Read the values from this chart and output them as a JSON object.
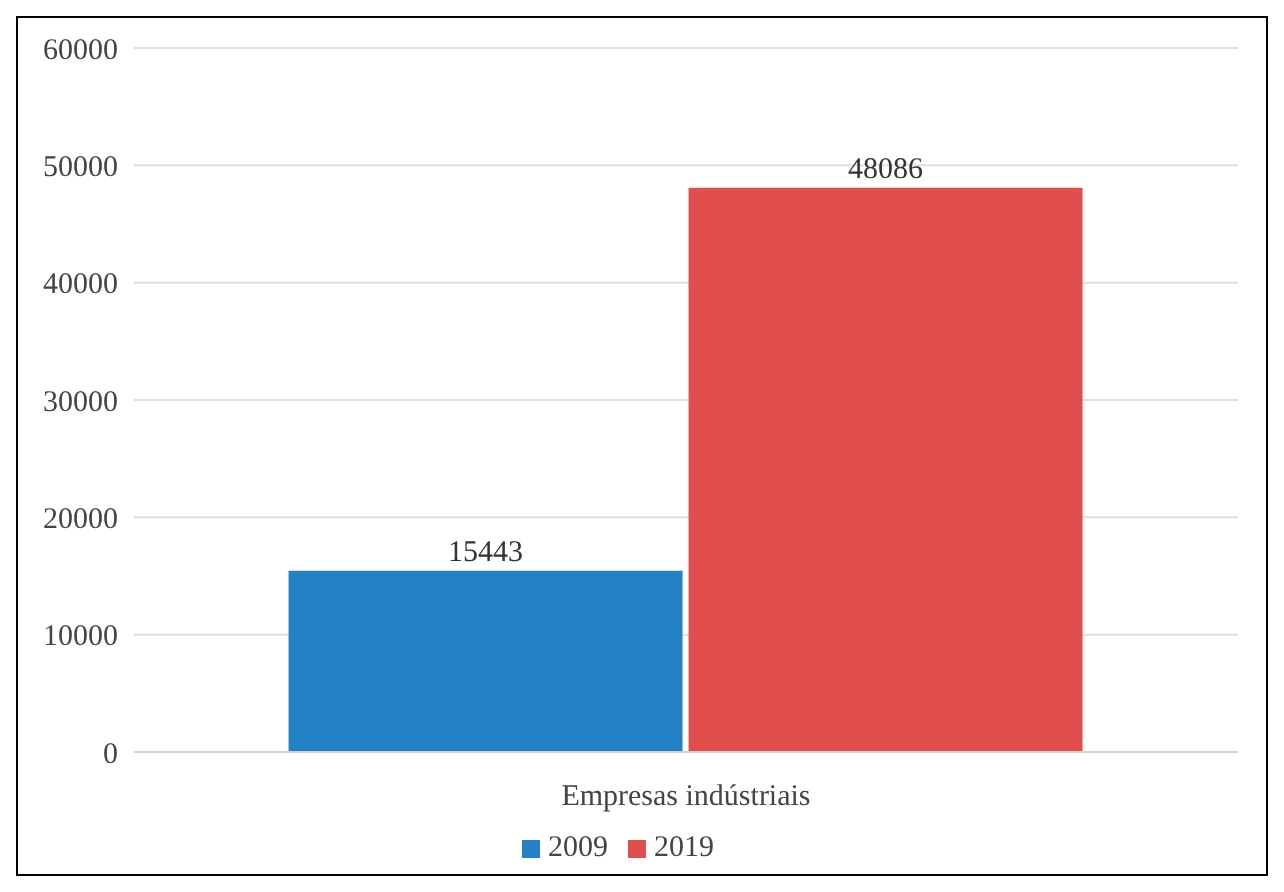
{
  "chart_data": {
    "type": "bar",
    "categories": [
      "Empresas indústriais"
    ],
    "series": [
      {
        "name": "2009",
        "color": "#2481c4",
        "values": [
          15443
        ]
      },
      {
        "name": "2019",
        "color": "#e04e4e",
        "values": [
          48086
        ]
      }
    ],
    "ylim": [
      0,
      60000
    ],
    "yticks": [
      0,
      10000,
      20000,
      30000,
      40000,
      50000,
      60000
    ],
    "grid": "y",
    "legend": "bottom",
    "data_labels": true
  }
}
